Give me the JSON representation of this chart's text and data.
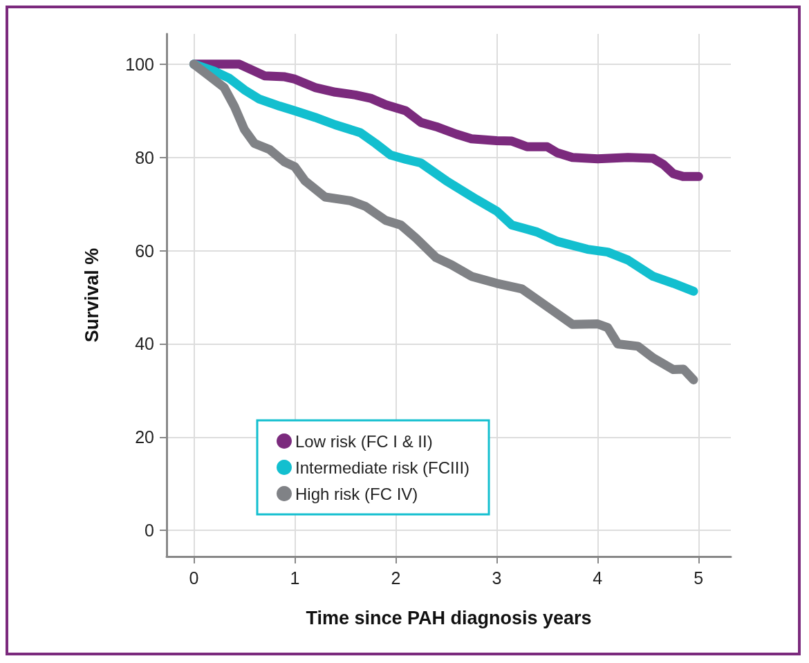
{
  "chart_data": {
    "type": "line",
    "xlabel": "Time since PAH diagnosis years",
    "ylabel": "Survival %",
    "xlim": [
      -0.27,
      5.32
    ],
    "ylim": [
      -5.6,
      106.5
    ],
    "xticks": [
      0,
      1,
      2,
      3,
      4,
      5
    ],
    "yticks": [
      0,
      20,
      40,
      60,
      80,
      100
    ],
    "grid": true,
    "legend": "bottom left",
    "marker": "none",
    "line_style": "solid",
    "series": [
      {
        "name": "Low risk (FC I & II)",
        "color": "#7b2a7d",
        "x": [
          0,
          0.25,
          0.45,
          0.6,
          0.7,
          0.9,
          1.0,
          1.2,
          1.4,
          1.6,
          1.75,
          1.9,
          2.1,
          2.25,
          2.4,
          2.6,
          2.75,
          3.0,
          3.15,
          3.3,
          3.5,
          3.6,
          3.75,
          4.0,
          4.3,
          4.55,
          4.65,
          4.75,
          4.85,
          5.0
        ],
        "values": [
          100,
          100,
          100,
          98.5,
          97.5,
          97.3,
          96.8,
          95,
          94,
          93.4,
          92.7,
          91.3,
          90,
          87.5,
          86.6,
          85,
          84,
          83.6,
          83.5,
          82.3,
          82.3,
          81,
          80,
          79.7,
          80,
          79.8,
          78.5,
          76.5,
          75.9,
          75.9
        ]
      },
      {
        "name": "Intermediate risk (FCIII)",
        "color": "#13bfcf",
        "x": [
          0,
          0.2,
          0.35,
          0.5,
          0.65,
          0.85,
          1.0,
          1.2,
          1.4,
          1.65,
          1.8,
          1.95,
          2.1,
          2.25,
          2.5,
          2.8,
          3.0,
          3.15,
          3.4,
          3.6,
          3.9,
          4.1,
          4.3,
          4.55,
          4.75,
          4.95
        ],
        "values": [
          100,
          98.5,
          97,
          94.5,
          92.5,
          91,
          90,
          88.6,
          87,
          85.3,
          83,
          80.5,
          79.6,
          78.8,
          75,
          71,
          68.5,
          65.5,
          64,
          62,
          60.3,
          59.7,
          58,
          54.5,
          53,
          51.3
        ]
      },
      {
        "name": "High risk (FC IV)",
        "color": "#808286",
        "x": [
          0,
          0.15,
          0.3,
          0.4,
          0.5,
          0.6,
          0.75,
          0.9,
          1.0,
          1.1,
          1.3,
          1.55,
          1.7,
          1.9,
          2.05,
          2.2,
          2.4,
          2.55,
          2.75,
          3.0,
          3.25,
          3.5,
          3.75,
          4.0,
          4.1,
          4.2,
          4.4,
          4.55,
          4.75,
          4.85,
          4.95
        ],
        "values": [
          100,
          97.5,
          95,
          91,
          86,
          83,
          81.7,
          79,
          78,
          75,
          71.5,
          70.7,
          69.5,
          66.5,
          65.5,
          62.7,
          58.5,
          57,
          54.5,
          53,
          51.8,
          48,
          44.2,
          44.3,
          43.5,
          40,
          39.5,
          37,
          34.5,
          34.6,
          32.3
        ]
      }
    ]
  }
}
